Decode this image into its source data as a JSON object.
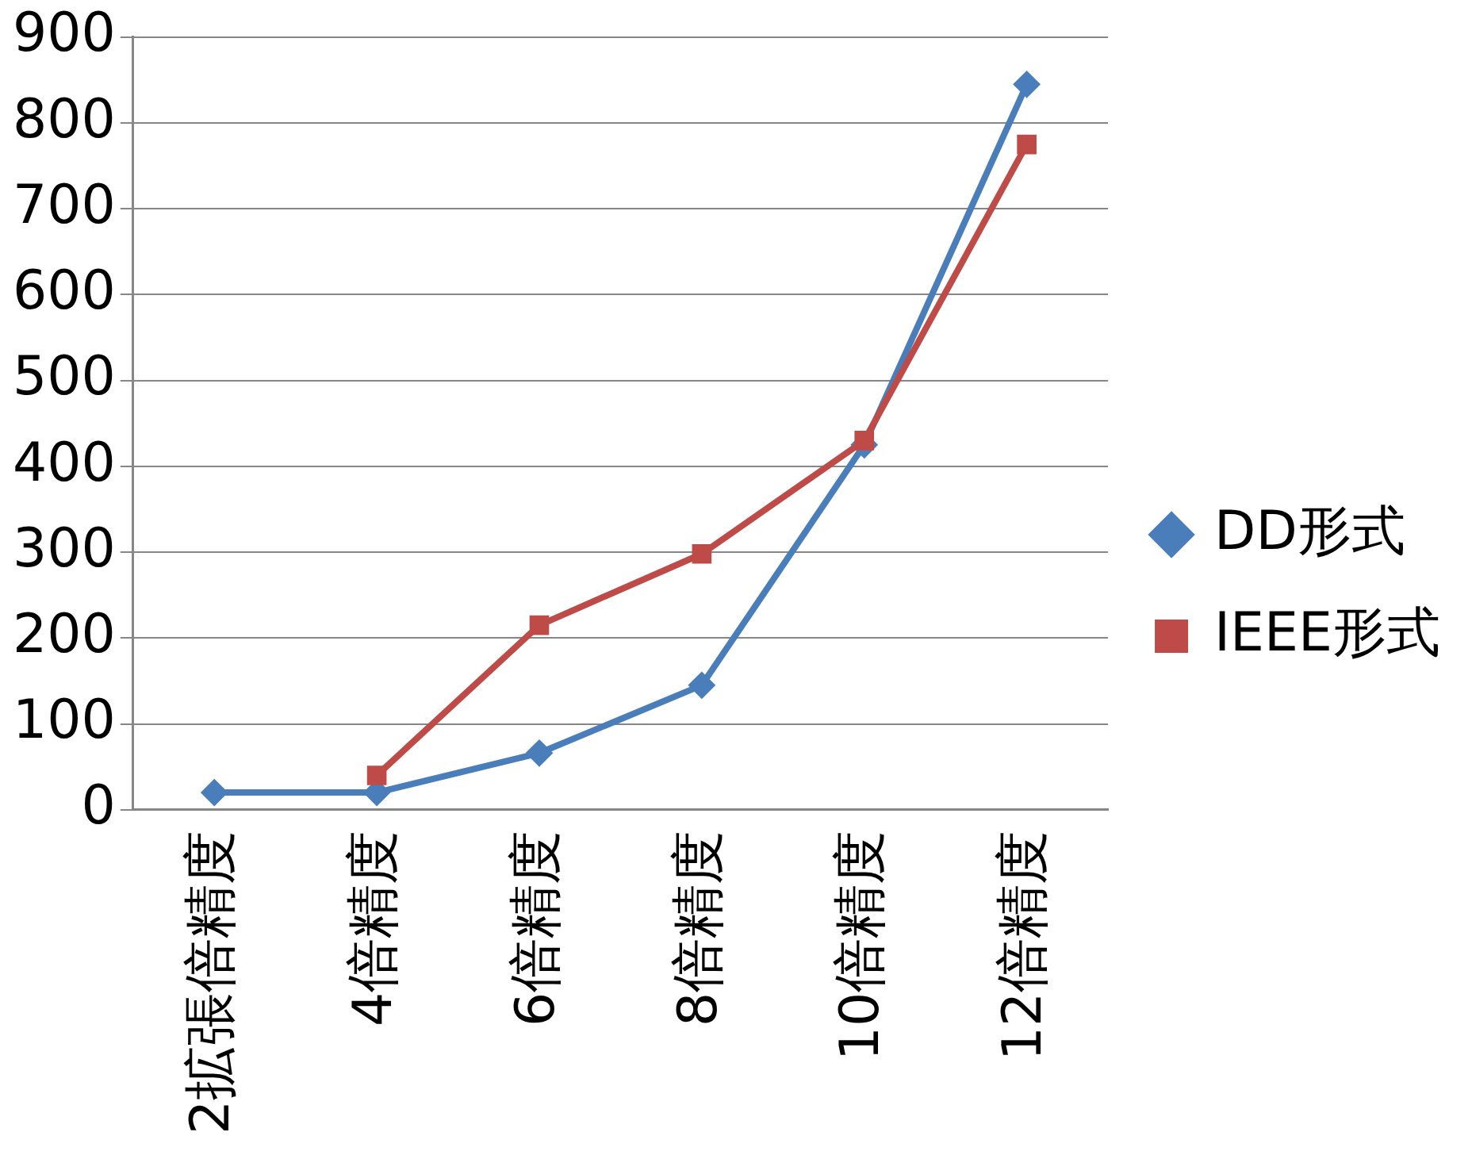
{
  "chart_data": {
    "type": "line",
    "categories": [
      "2拡張倍精度",
      "4倍精度",
      "6倍精度",
      "8倍精度",
      "10倍精度",
      "12倍精度"
    ],
    "series": [
      {
        "name": "DD形式",
        "color": "#4a7ebb",
        "marker": "diamond",
        "values": [
          20,
          20,
          66,
          145,
          425,
          845
        ]
      },
      {
        "name": "IEEE形式",
        "color": "#be4b48",
        "marker": "square",
        "values": [
          null,
          40,
          215,
          298,
          430,
          775
        ]
      }
    ],
    "ylim": [
      0,
      900
    ],
    "yticks": [
      0,
      100,
      200,
      300,
      400,
      500,
      600,
      700,
      800,
      900
    ],
    "grid": "y",
    "legend": "right",
    "line_style": "solid"
  }
}
